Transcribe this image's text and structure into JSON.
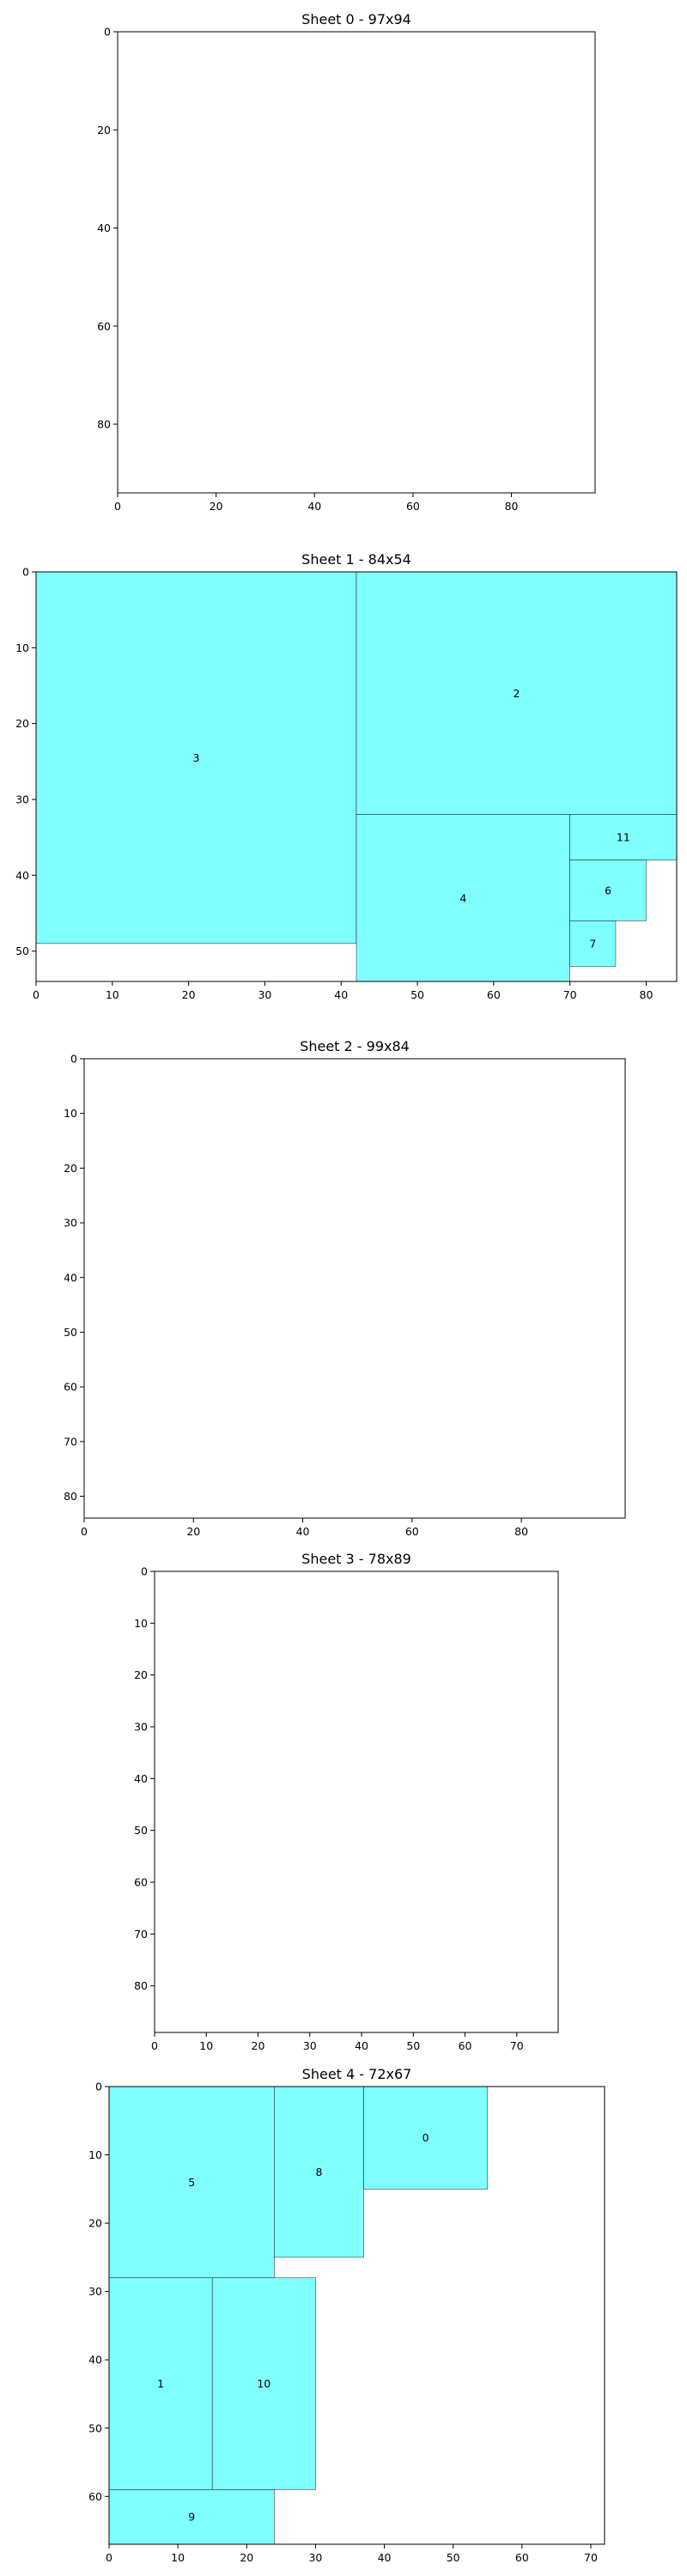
{
  "colors": {
    "piece_fill": "#80ffff",
    "piece_edge": "#000000"
  },
  "chart_data": [
    {
      "type": "rectangle-packing",
      "title": "Sheet 0 - 97x94",
      "sheet_width": 97,
      "sheet_height": 94,
      "xlim": [
        0,
        97
      ],
      "ylim": [
        0,
        94
      ],
      "y_inverted": true,
      "xticks": [
        0,
        20,
        40,
        60,
        80
      ],
      "yticks": [
        0,
        20,
        40,
        60,
        80
      ],
      "rects": []
    },
    {
      "type": "rectangle-packing",
      "title": "Sheet 1 - 84x54",
      "sheet_width": 84,
      "sheet_height": 54,
      "xlim": [
        0,
        84
      ],
      "ylim": [
        0,
        54
      ],
      "y_inverted": true,
      "xticks": [
        0,
        10,
        20,
        30,
        40,
        50,
        60,
        70,
        80
      ],
      "yticks": [
        0,
        10,
        20,
        30,
        40,
        50
      ],
      "rects": [
        {
          "id": "3",
          "x": 0,
          "y": 0,
          "w": 42,
          "h": 49
        },
        {
          "id": "2",
          "x": 42,
          "y": 0,
          "w": 42,
          "h": 32
        },
        {
          "id": "4",
          "x": 42,
          "y": 32,
          "w": 28,
          "h": 22
        },
        {
          "id": "11",
          "x": 70,
          "y": 32,
          "w": 14,
          "h": 6
        },
        {
          "id": "6",
          "x": 70,
          "y": 38,
          "w": 10,
          "h": 8
        },
        {
          "id": "7",
          "x": 70,
          "y": 46,
          "w": 6,
          "h": 6
        }
      ]
    },
    {
      "type": "rectangle-packing",
      "title": "Sheet 2 - 99x84",
      "sheet_width": 99,
      "sheet_height": 84,
      "xlim": [
        0,
        99
      ],
      "ylim": [
        0,
        84
      ],
      "y_inverted": true,
      "xticks": [
        0,
        20,
        40,
        60,
        80
      ],
      "yticks": [
        0,
        10,
        20,
        30,
        40,
        50,
        60,
        70,
        80
      ],
      "rects": []
    },
    {
      "type": "rectangle-packing",
      "title": "Sheet 3 - 78x89",
      "sheet_width": 78,
      "sheet_height": 89,
      "xlim": [
        0,
        78
      ],
      "ylim": [
        0,
        89
      ],
      "y_inverted": true,
      "xticks": [
        0,
        10,
        20,
        30,
        40,
        50,
        60,
        70
      ],
      "yticks": [
        0,
        10,
        20,
        30,
        40,
        50,
        60,
        70,
        80
      ],
      "rects": []
    },
    {
      "type": "rectangle-packing",
      "title": "Sheet 4 - 72x67",
      "sheet_width": 72,
      "sheet_height": 67,
      "xlim": [
        0,
        72
      ],
      "ylim": [
        0,
        67
      ],
      "y_inverted": true,
      "xticks": [
        0,
        10,
        20,
        30,
        40,
        50,
        60,
        70
      ],
      "yticks": [
        0,
        10,
        20,
        30,
        40,
        50,
        60
      ],
      "rects": [
        {
          "id": "5",
          "x": 0,
          "y": 0,
          "w": 24,
          "h": 28
        },
        {
          "id": "8",
          "x": 24,
          "y": 0,
          "w": 13,
          "h": 25
        },
        {
          "id": "0",
          "x": 37,
          "y": 0,
          "w": 18,
          "h": 15
        },
        {
          "id": "1",
          "x": 0,
          "y": 28,
          "w": 15,
          "h": 31
        },
        {
          "id": "10",
          "x": 15,
          "y": 28,
          "w": 15,
          "h": 31
        },
        {
          "id": "9",
          "x": 0,
          "y": 59,
          "w": 24,
          "h": 8
        }
      ]
    }
  ]
}
